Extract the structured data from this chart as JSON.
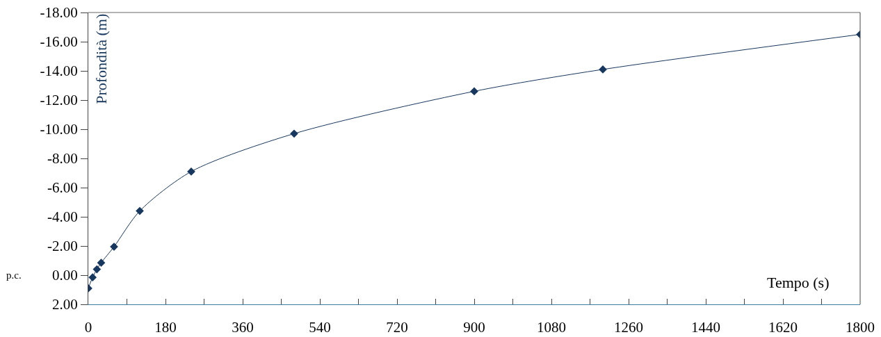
{
  "chart_data": {
    "type": "line",
    "xlabel": "Tempo (s)",
    "ylabel": "Profondità (m)",
    "x": [
      0,
      10,
      20,
      30,
      60,
      120,
      240,
      480,
      900,
      1200,
      1800
    ],
    "series": [
      {
        "color": "#17375e",
        "values": [
          0.9,
          0.15,
          -0.4,
          -0.85,
          -1.95,
          -4.4,
          -7.1,
          -9.7,
          -12.6,
          -14.1,
          -16.5
        ]
      }
    ],
    "xlim": [
      0,
      1800
    ],
    "xticks": [
      0,
      {
        "value": 90,
        "label": null
      },
      180,
      {
        "value": 270,
        "label": null
      },
      360,
      {
        "value": 450,
        "label": null
      },
      540,
      {
        "value": 630,
        "label": null
      },
      720,
      {
        "value": 810,
        "label": null
      },
      900,
      {
        "value": 990,
        "label": null
      },
      1080,
      {
        "value": 1170,
        "label": null
      },
      1260,
      {
        "value": 1350,
        "label": null
      },
      1440,
      {
        "value": 1530,
        "label": null
      },
      1620,
      {
        "value": 1710,
        "label": null
      },
      1800
    ],
    "ylim": [
      2,
      -18
    ],
    "yticks": [
      {
        "value": -18,
        "label": "-18.00"
      },
      {
        "value": -16,
        "label": "-16.00"
      },
      {
        "value": -14,
        "label": "-14.00"
      },
      {
        "value": -12,
        "label": "-12.00"
      },
      {
        "value": -10,
        "label": "-10.00"
      },
      {
        "value": -8,
        "label": "-8.00"
      },
      {
        "value": -6,
        "label": "-6.00"
      },
      {
        "value": -4,
        "label": "-4.00"
      },
      {
        "value": -2,
        "label": "-2.00"
      },
      {
        "value": 0,
        "label": "0.00"
      },
      {
        "value": 2,
        "label": "2.00"
      }
    ],
    "annotations": [
      "p.c."
    ],
    "grid": false,
    "marker": "diamond",
    "line_style": "solid"
  }
}
